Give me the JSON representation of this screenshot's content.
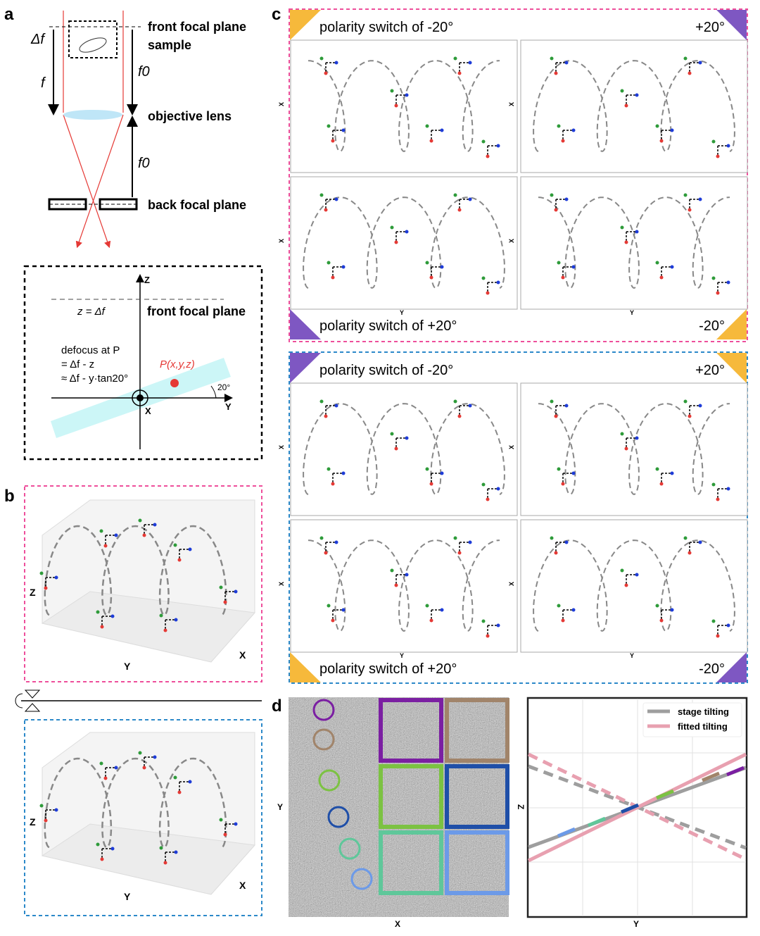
{
  "panel_a": {
    "label": "a",
    "delta_f": "Δf",
    "f": "f",
    "f0_top": "f0",
    "f0_bottom": "f0",
    "front_focal_plane": "front focal plane",
    "sample": "sample",
    "objective_lens": "objective lens",
    "back_focal_plane": "back focal plane",
    "inset": {
      "z_axis": "Z",
      "y_axis": "Y",
      "x_axis": "X",
      "plane_eq": "z = Δf",
      "front_focal_plane": "front focal plane",
      "defocus_line1": "defocus at P",
      "defocus_line2": "= Δf - z",
      "defocus_line3": "≈ Δf - y·tan20°",
      "point_label": "P(x,y,z)",
      "angle": "20°"
    }
  },
  "panel_b": {
    "label": "b",
    "top": {
      "z": "Z",
      "y": "Y",
      "x": "X"
    },
    "bottom": {
      "z": "Z",
      "y": "Y",
      "x": "X"
    }
  },
  "panel_c": {
    "label": "c",
    "blocks": [
      {
        "header": "polarity switch of -20°",
        "header_right": "+20°",
        "footer": "polarity switch of +20°",
        "footer_right": "-20°",
        "frame_color": "#ee4f9b"
      },
      {
        "header": "polarity switch of -20°",
        "header_right": "+20°",
        "footer": "polarity switch of +20°",
        "footer_right": "-20°",
        "frame_color": "#2c89c9"
      }
    ],
    "x_label": "X",
    "y_label": "Y",
    "corner_colors": {
      "orange": "#f6b93b",
      "purple": "#7e57c2"
    }
  },
  "panel_d": {
    "label": "d",
    "image_x_label": "X",
    "image_y_label": "Y",
    "plot_x_label": "Y",
    "plot_y_label": "Z",
    "legend": [
      {
        "name": "stage tilting",
        "color": "#9e9e9e"
      },
      {
        "name": "fitted tilting",
        "color": "#e8a0b0"
      }
    ],
    "particle_colors": [
      "#7b1fa2",
      "#a1846a",
      "#7cc242",
      "#1f4fa8",
      "#5fc79a",
      "#6c9ae8"
    ]
  }
}
